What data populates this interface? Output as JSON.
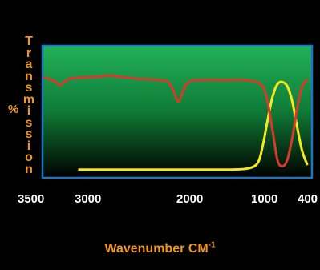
{
  "chart_data": {
    "type": "line",
    "title": "",
    "ylabel": "Transmission",
    "ylabel_prefix": "%",
    "xlabel": "Wavenumber CM",
    "xlabel_superscript": "-1",
    "x_ticks": [
      "3500",
      "3000",
      "2000",
      "1000",
      "400"
    ],
    "x_tick_values": [
      3500,
      3000,
      2000,
      1000,
      400
    ],
    "xlim": [
      3500,
      400
    ],
    "ylim": [
      0,
      100
    ],
    "grid": false,
    "legend": "none",
    "series": [
      {
        "color": "#d63a2a",
        "x": [
          3450,
          3350,
          3250,
          3200,
          3150,
          3100,
          3000,
          2800,
          2700,
          2600,
          2400,
          2200,
          2100,
          2050,
          2000,
          1950,
          1900,
          1800,
          1600,
          1450,
          1350,
          1250,
          1150,
          1100,
          1050,
          1000,
          950,
          900,
          850,
          800,
          750,
          700,
          650,
          600,
          500,
          400
        ],
        "y": [
          86,
          86,
          83,
          79,
          82,
          85,
          86,
          87,
          88,
          87,
          85,
          84,
          82,
          74,
          64,
          74,
          82,
          84,
          84,
          84,
          84,
          83,
          78,
          64,
          38,
          10,
          4,
          10,
          30,
          58,
          78,
          84,
          85,
          85,
          85,
          85
        ]
      },
      {
        "color": "#f5e81e",
        "x": [
          3450,
          3000,
          2000,
          1500,
          1300,
          1200,
          1150,
          1100,
          1050,
          1000,
          950,
          900,
          850,
          800,
          750,
          700,
          650,
          600,
          500,
          400
        ],
        "y": [
          1,
          1,
          1,
          1,
          2,
          7,
          22,
          46,
          68,
          80,
          82,
          78,
          64,
          40,
          18,
          6,
          2,
          1,
          1,
          1
        ]
      }
    ]
  },
  "colors": {
    "background": "#000000",
    "frame": "#1976c8",
    "plot_top": "#22b25a",
    "plot_mid": "#0f7a36",
    "plot_bottom": "#000000",
    "label": "#f0961e",
    "tick_text": "#ffffff"
  }
}
